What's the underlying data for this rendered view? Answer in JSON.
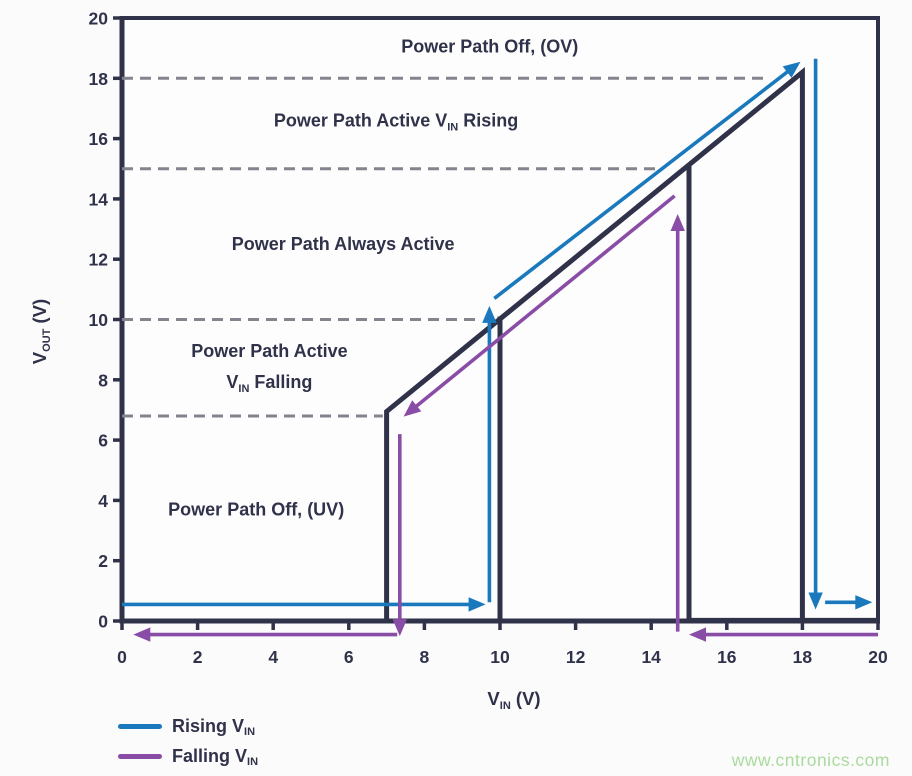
{
  "colors": {
    "dark": "#30324a",
    "blue": "#1a79bd",
    "purple": "#8a4da6",
    "dashed": "#83848e",
    "bg": "#fbfbfc",
    "plot_bg": "#fdfdfe",
    "watermark_green": "#aadb9d"
  },
  "watermark": {
    "text": "www.cntronics.com"
  },
  "legend": {
    "items": [
      {
        "name": "rising-vin",
        "color_key": "blue",
        "label_parts": [
          {
            "t": "Rising V"
          },
          {
            "t": "IN",
            "sub": true
          }
        ]
      },
      {
        "name": "falling-vin",
        "color_key": "purple",
        "label_parts": [
          {
            "t": "Falling V"
          },
          {
            "t": "IN",
            "sub": true
          }
        ]
      }
    ]
  },
  "chart_data": {
    "type": "line",
    "title": "",
    "xlabel_parts": [
      {
        "t": "V"
      },
      {
        "t": "IN",
        "sub": true
      },
      {
        "t": " (V)"
      }
    ],
    "ylabel_parts": [
      {
        "t": "V"
      },
      {
        "t": "OUT",
        "sub": true
      },
      {
        "t": " (V)"
      }
    ],
    "xlim": [
      0,
      20
    ],
    "ylim": [
      0,
      20
    ],
    "x_ticks": [
      0,
      2,
      4,
      6,
      8,
      10,
      12,
      14,
      16,
      18,
      20
    ],
    "y_ticks": [
      0,
      2,
      4,
      6,
      8,
      10,
      12,
      14,
      16,
      18,
      20
    ],
    "grid": false,
    "legend_position": "bottom-left",
    "threshold_lines": [
      {
        "name": "ov-rising-threshold",
        "y": 18,
        "x_start": 0,
        "x_end": 17.0
      },
      {
        "name": "ov-falling-threshold",
        "y": 15,
        "x_start": 0,
        "x_end": 14.2
      },
      {
        "name": "uv-rising-threshold",
        "y": 10,
        "x_start": 0,
        "x_end": 9.45
      },
      {
        "name": "uv-falling-threshold",
        "y": 6.8,
        "x_start": 0,
        "x_end": 6.9
      }
    ],
    "device_curve": {
      "name": "vout-transfer-curve",
      "color_key": "dark",
      "segments": [
        [
          [
            7,
            0
          ],
          [
            7,
            6.95
          ],
          [
            18,
            18.2
          ],
          [
            18,
            0
          ]
        ],
        [
          [
            10,
            10.1
          ],
          [
            10,
            0
          ]
        ],
        [
          [
            15,
            15.15
          ],
          [
            15,
            0
          ]
        ],
        [
          [
            14.95,
            0.02
          ],
          [
            20,
            0.02
          ]
        ]
      ]
    },
    "series": [
      {
        "name": "Rising VIN",
        "color_key": "blue",
        "arrow_segments": [
          {
            "pts": [
              [
                0,
                0.55
              ],
              [
                9.62,
                0.55
              ]
            ]
          },
          {
            "pts": [
              [
                9.72,
                0.62
              ],
              [
                9.72,
                10.45
              ]
            ]
          },
          {
            "pts": [
              [
                9.85,
                10.7
              ],
              [
                17.95,
                18.55
              ]
            ]
          },
          {
            "pts": [
              [
                18.35,
                18.65
              ],
              [
                18.35,
                0.38
              ]
            ]
          },
          {
            "pts": [
              [
                18.6,
                0.62
              ],
              [
                19.85,
                0.62
              ]
            ]
          }
        ]
      },
      {
        "name": "Falling VIN",
        "color_key": "purple",
        "arrow_segments": [
          {
            "pts": [
              [
                20,
                -0.45
              ],
              [
                15.0,
                -0.45
              ]
            ]
          },
          {
            "pts": [
              [
                14.7,
                -0.35
              ],
              [
                14.7,
                13.5
              ]
            ]
          },
          {
            "pts": [
              [
                14.62,
                14.1
              ],
              [
                7.45,
                6.78
              ]
            ]
          },
          {
            "pts": [
              [
                7.35,
                6.2
              ],
              [
                7.35,
                -0.5
              ]
            ]
          },
          {
            "pts": [
              [
                7.28,
                -0.45
              ],
              [
                0.3,
                -0.45
              ]
            ]
          }
        ]
      }
    ],
    "region_labels": [
      {
        "name": "region-power-path-off-ov",
        "parts": [
          {
            "t": "Power Path Off, (OV)"
          }
        ],
        "x": 9.73,
        "y": 19.05
      },
      {
        "name": "region-power-path-active-rising",
        "parts": [
          {
            "t": "Power Path Active V"
          },
          {
            "t": "IN",
            "sub": true
          },
          {
            "t": " Rising"
          }
        ],
        "x": 7.25,
        "y": 16.6
      },
      {
        "name": "region-power-path-always-active",
        "parts": [
          {
            "t": "Power Path Always Active"
          }
        ],
        "x": 5.85,
        "y": 12.5
      },
      {
        "name": "region-power-path-active-falling-line1",
        "parts": [
          {
            "t": "Power Path Active"
          }
        ],
        "x": 3.9,
        "y": 8.95
      },
      {
        "name": "region-power-path-active-falling-line2",
        "parts": [
          {
            "t": "V"
          },
          {
            "t": "IN",
            "sub": true
          },
          {
            "t": " Falling"
          }
        ],
        "x": 3.9,
        "y": 7.93
      },
      {
        "name": "region-power-path-off-uv",
        "parts": [
          {
            "t": "Power Path Off, (UV)"
          }
        ],
        "x": 3.55,
        "y": 3.7
      }
    ]
  }
}
